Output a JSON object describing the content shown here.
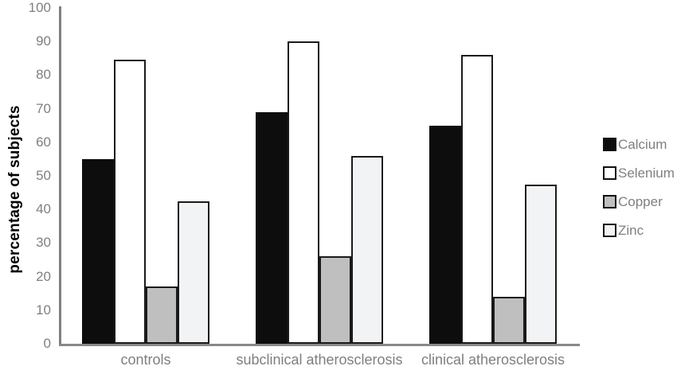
{
  "chart_data": {
    "type": "bar",
    "title": "",
    "xlabel": "",
    "ylabel": "percentage of subjects",
    "ylim": [
      0,
      100
    ],
    "yticks": [
      0,
      10,
      20,
      30,
      40,
      50,
      60,
      70,
      80,
      90,
      100
    ],
    "grid": false,
    "legend_position": "right",
    "categories": [
      "controls",
      "subclinical atherosclerosis",
      "clinical atherosclerosis"
    ],
    "series": [
      {
        "name": "Calcium",
        "color": "#0d0d0d",
        "values": [
          55,
          69,
          65
        ]
      },
      {
        "name": "Selenium",
        "color": "#ffffff",
        "values": [
          84.5,
          90,
          86
        ]
      },
      {
        "name": "Copper",
        "color": "#bfbfbf",
        "values": [
          17,
          26,
          14
        ]
      },
      {
        "name": "Zinc",
        "color": "#f1f3f5",
        "values": [
          42.5,
          56,
          47.5
        ]
      }
    ],
    "bar_border_color": "#1a1a1a",
    "axis_color": "#7f7f7f",
    "tick_label_color": "#7f7f7f"
  }
}
